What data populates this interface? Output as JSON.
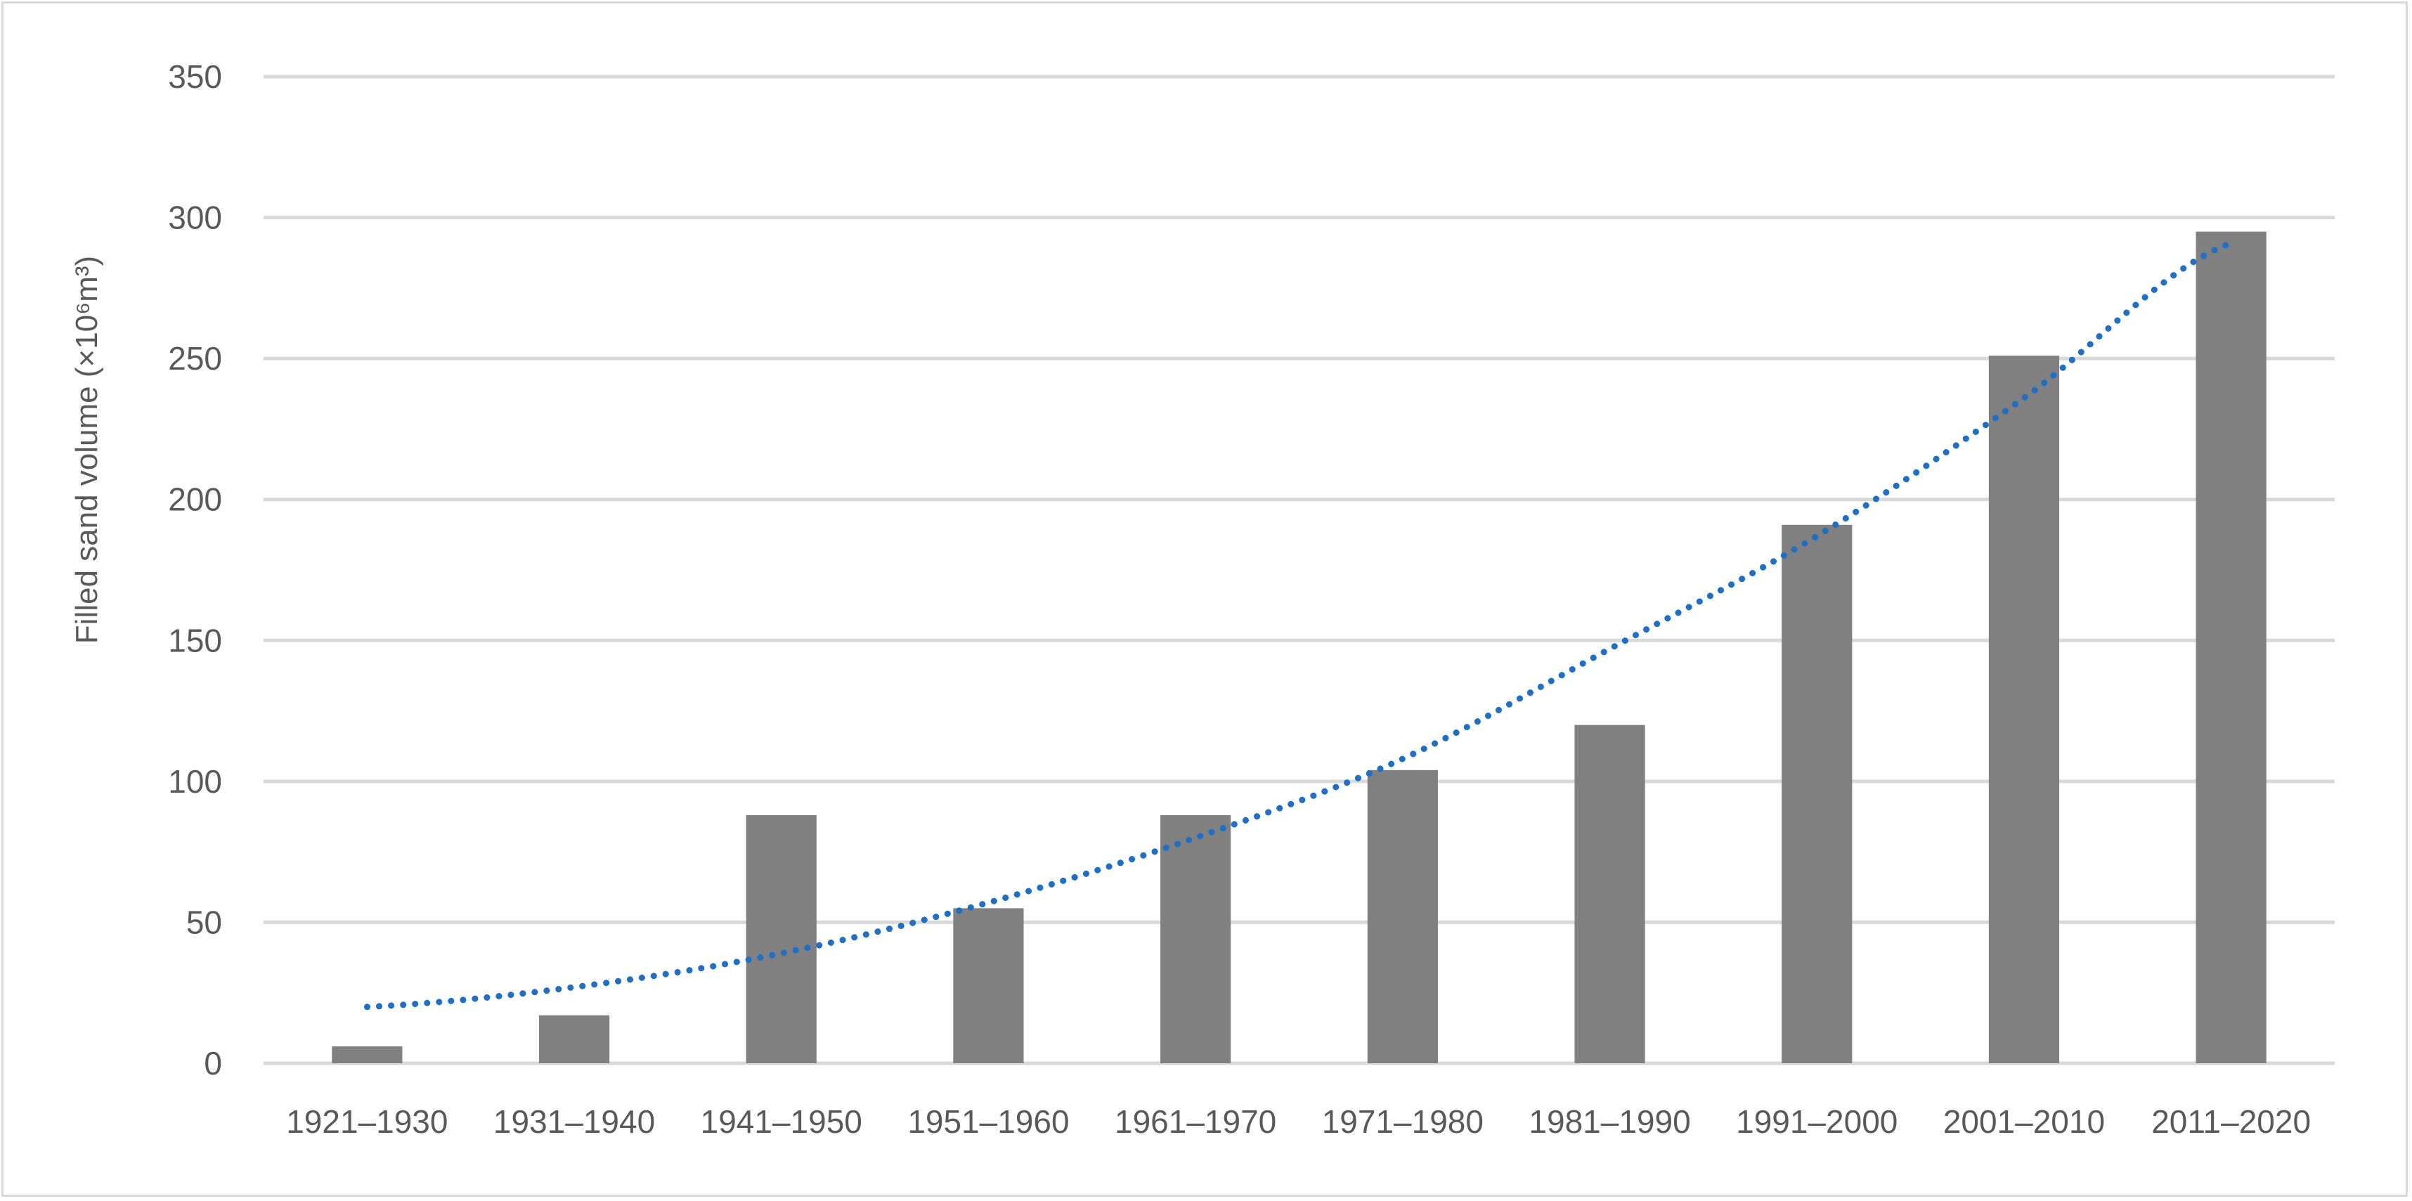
{
  "chart_data": {
    "type": "bar",
    "title": "",
    "xlabel": "",
    "ylabel": "Filled sand volume (×10⁶m³)",
    "ylim": [
      0,
      350
    ],
    "yticks": [
      0,
      50,
      100,
      150,
      200,
      250,
      300,
      350
    ],
    "ytick_labels": [
      "0",
      "50",
      "100",
      "150",
      "200",
      "250",
      "300",
      "350"
    ],
    "grid": true,
    "legend": "none",
    "categories": [
      "1921–1930",
      "1931–1940",
      "1941–1950",
      "1951–1960",
      "1961–1970",
      "1971–1980",
      "1981–1990",
      "1991–2000",
      "2001–2010",
      "2011–2020"
    ],
    "series": [
      {
        "values": [
          6,
          17,
          88,
          55,
          88,
          104,
          120,
          191,
          251,
          295
        ],
        "color": "#808080"
      }
    ],
    "trendline": {
      "style": "dotted",
      "color": "#1f6fc5",
      "values": [
        20,
        27,
        39,
        57,
        80,
        108,
        147,
        187,
        236,
        291
      ]
    },
    "colors": {
      "bar": "#808080",
      "trendline": "#1f6fc5",
      "grid": "#d9d9d9",
      "text": "#595959",
      "frame": "#d9d9d9"
    }
  }
}
